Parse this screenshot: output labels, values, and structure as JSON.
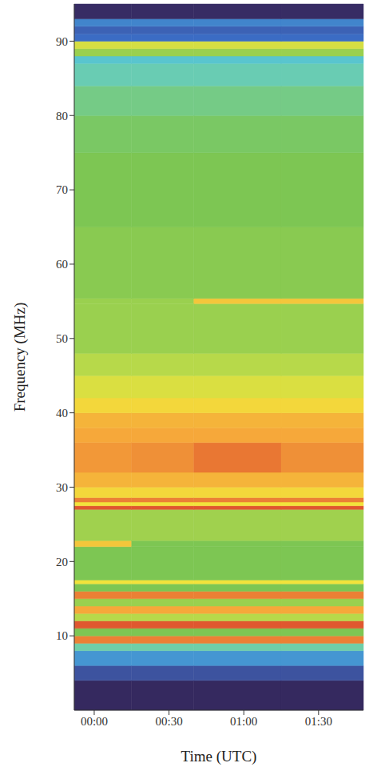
{
  "chart_data": {
    "type": "heatmap",
    "x_label": "Time (UTC)",
    "y_label": "Frequency (MHz)",
    "xlim": [
      -8,
      108
    ],
    "xticks": [
      {
        "value": 0,
        "label": "00:00"
      },
      {
        "value": 30,
        "label": "00:30"
      },
      {
        "value": 60,
        "label": "01:00"
      },
      {
        "value": 90,
        "label": "01:30"
      }
    ],
    "ylim": [
      0,
      95
    ],
    "yticks": [
      10,
      20,
      30,
      40,
      50,
      60,
      70,
      80,
      90
    ],
    "grid": false,
    "x_edges": [
      -8,
      15,
      40,
      75,
      108
    ],
    "y_edges": [
      0,
      4,
      6,
      8,
      9,
      10,
      11,
      12,
      13,
      14,
      15,
      16,
      17,
      17.5,
      22,
      22.8,
      27,
      27.5,
      28,
      28.6,
      30,
      32,
      36,
      38,
      40,
      42,
      45,
      48,
      54.7,
      55.4,
      65,
      75,
      80,
      84,
      87,
      88,
      89,
      90,
      91,
      92,
      93,
      95
    ],
    "zlim": [
      0,
      10
    ],
    "cells": [
      [
        0.5,
        0.5,
        0.5,
        0.5
      ],
      [
        1.5,
        1.5,
        1.5,
        1.5
      ],
      [
        2.5,
        2.5,
        2.5,
        2.5
      ],
      [
        4,
        4,
        4,
        4
      ],
      [
        8.5,
        8.5,
        8.5,
        8.5
      ],
      [
        5,
        5,
        5,
        5
      ],
      [
        9,
        9,
        9,
        9
      ],
      [
        6,
        6,
        6,
        6
      ],
      [
        8,
        8,
        8,
        8
      ],
      [
        5.5,
        5.5,
        5.5,
        5.5
      ],
      [
        8.5,
        8.5,
        8.5,
        8.5
      ],
      [
        5,
        5,
        5,
        5
      ],
      [
        7,
        7,
        7,
        7
      ],
      [
        5,
        5,
        5,
        5
      ],
      [
        7.5,
        5,
        5,
        5
      ],
      [
        5.6,
        5.6,
        5.6,
        5.6
      ],
      [
        9,
        9,
        9,
        9
      ],
      [
        7,
        7,
        7,
        7
      ],
      [
        8.5,
        8.5,
        8.5,
        8.5
      ],
      [
        7.2,
        7.2,
        7.2,
        7.2
      ],
      [
        7.8,
        7.8,
        7.8,
        7.8
      ],
      [
        8.2,
        8.3,
        8.6,
        8.3
      ],
      [
        8,
        8,
        8,
        8
      ],
      [
        7.8,
        7.8,
        7.8,
        7.8
      ],
      [
        7.2,
        7.2,
        7.2,
        7.2
      ],
      [
        6.6,
        6.6,
        6.6,
        6.6
      ],
      [
        6,
        6,
        6,
        6
      ],
      [
        5.5,
        5.5,
        5.5,
        5.5
      ],
      [
        5.5,
        5.5,
        7.5,
        7.5
      ],
      [
        5.2,
        5.2,
        5.2,
        5.2
      ],
      [
        5,
        5,
        5,
        5
      ],
      [
        4.8,
        4.8,
        4.8,
        4.8
      ],
      [
        4.4,
        4.4,
        4.4,
        4.4
      ],
      [
        3.8,
        3.8,
        3.8,
        3.8
      ],
      [
        3.3,
        3.3,
        3.3,
        3.3
      ],
      [
        5.5,
        5.5,
        5.5,
        5.5
      ],
      [
        6.5,
        6.5,
        6.5,
        6.5
      ],
      [
        2,
        2,
        2,
        2
      ],
      [
        1.8,
        1.8,
        1.8,
        1.8
      ],
      [
        2.3,
        2.3,
        2.3,
        2.3
      ],
      [
        0.6,
        0.6,
        0.6,
        0.6
      ]
    ]
  }
}
